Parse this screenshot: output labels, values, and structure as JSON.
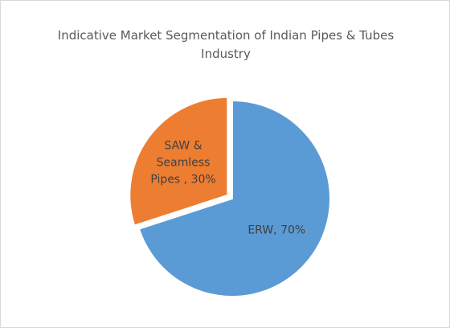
{
  "chart_data": {
    "type": "pie",
    "title": "Indicative Market Segmentation of Indian Pipes & Tubes Industry",
    "values": [
      70,
      30
    ],
    "value_labels": [
      "ERW, 70%",
      "SAW & Seamless Pipes , 30%"
    ],
    "colors": [
      "#5b9bd5",
      "#ed7d31"
    ],
    "start_angle": 0,
    "direction": "clockwise",
    "exploded": [
      false,
      true
    ]
  }
}
